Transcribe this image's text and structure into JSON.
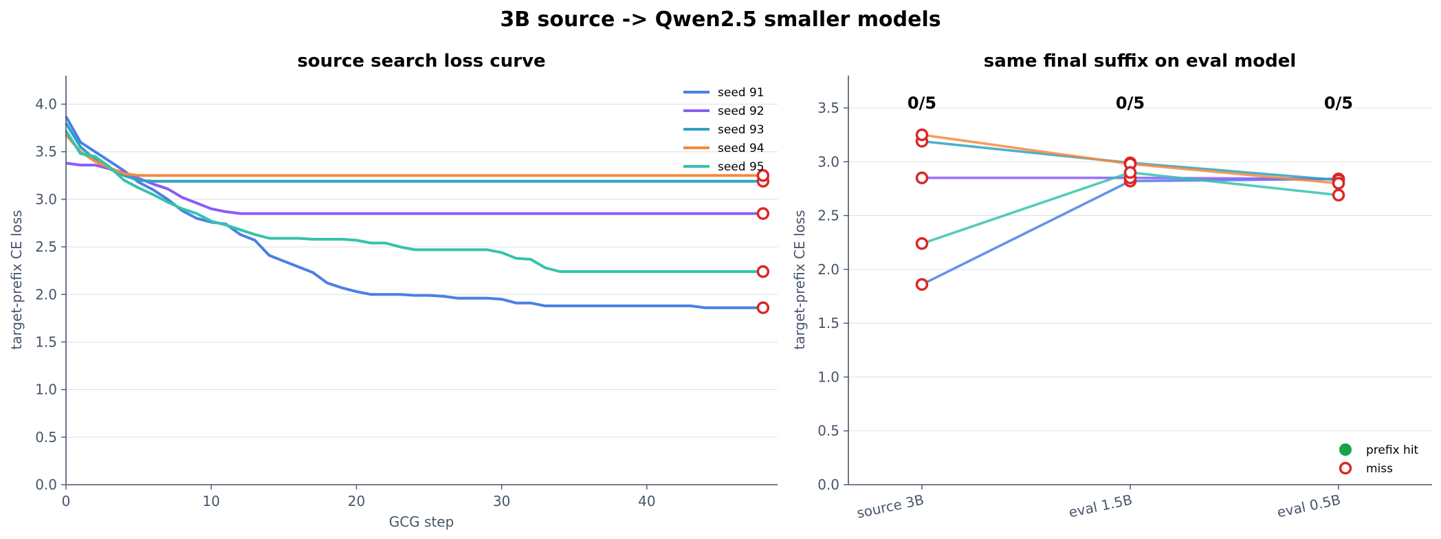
{
  "figure": {
    "title": "3B source -> Qwen2.5 smaller models"
  },
  "colors": {
    "seed 91": "#4a7fe6",
    "seed 92": "#8b5cf6",
    "seed 93": "#2ea2c3",
    "seed 94": "#f48a3c",
    "seed 95": "#36c2ad",
    "hit": "#16a34a",
    "miss": "#dc2626",
    "grid": "#dcdfe4",
    "axis": "#475569"
  },
  "chart_data": [
    {
      "type": "line",
      "title": "source search loss curve",
      "xlabel": "GCG step",
      "ylabel": "target-prefix CE loss",
      "xlim": [
        0,
        49
      ],
      "ylim": [
        0,
        4.3
      ],
      "xticks": [
        "0",
        "10",
        "20",
        "30",
        "40"
      ],
      "yticks": [
        "0.0",
        "0.5",
        "1.0",
        "1.5",
        "2.0",
        "2.5",
        "3.0",
        "3.5",
        "4.0"
      ],
      "grid": "horizontal",
      "legend": "top-right",
      "x": [
        0,
        1,
        2,
        3,
        4,
        5,
        6,
        7,
        8,
        9,
        10,
        11,
        12,
        13,
        14,
        15,
        16,
        17,
        18,
        19,
        20,
        21,
        22,
        23,
        24,
        25,
        26,
        27,
        28,
        29,
        30,
        31,
        32,
        33,
        34,
        35,
        36,
        37,
        38,
        39,
        40,
        41,
        42,
        43,
        44,
        45,
        46,
        47,
        48
      ],
      "series": [
        {
          "name": "seed 91",
          "values": [
            3.87,
            3.6,
            3.5,
            3.4,
            3.3,
            3.18,
            3.1,
            3.0,
            2.88,
            2.8,
            2.76,
            2.74,
            2.63,
            2.57,
            2.41,
            2.35,
            2.29,
            2.23,
            2.12,
            2.07,
            2.03,
            2.0,
            2.0,
            2.0,
            1.99,
            1.99,
            1.98,
            1.96,
            1.96,
            1.96,
            1.95,
            1.91,
            1.91,
            1.88,
            1.88,
            1.88,
            1.88,
            1.88,
            1.88,
            1.88,
            1.88,
            1.88,
            1.88,
            1.88,
            1.86,
            1.86,
            1.86,
            1.86,
            1.86
          ]
        },
        {
          "name": "seed 92",
          "values": [
            3.38,
            3.36,
            3.36,
            3.32,
            3.28,
            3.22,
            3.16,
            3.11,
            3.02,
            2.96,
            2.9,
            2.87,
            2.85,
            2.85,
            2.85,
            2.85,
            2.85,
            2.85,
            2.85,
            2.85,
            2.85,
            2.85,
            2.85,
            2.85,
            2.85,
            2.85,
            2.85,
            2.85,
            2.85,
            2.85,
            2.85,
            2.85,
            2.85,
            2.85,
            2.85,
            2.85,
            2.85,
            2.85,
            2.85,
            2.85,
            2.85,
            2.85,
            2.85,
            2.85,
            2.85,
            2.85,
            2.85,
            2.85,
            2.85
          ]
        },
        {
          "name": "seed 93",
          "values": [
            3.8,
            3.55,
            3.42,
            3.32,
            3.25,
            3.2,
            3.19,
            3.19,
            3.19,
            3.19,
            3.19,
            3.19,
            3.19,
            3.19,
            3.19,
            3.19,
            3.19,
            3.19,
            3.19,
            3.19,
            3.19,
            3.19,
            3.19,
            3.19,
            3.19,
            3.19,
            3.19,
            3.19,
            3.19,
            3.19,
            3.19,
            3.19,
            3.19,
            3.19,
            3.19,
            3.19,
            3.19,
            3.19,
            3.19,
            3.19,
            3.19,
            3.19,
            3.19,
            3.19,
            3.19,
            3.19,
            3.19,
            3.19,
            3.19
          ]
        },
        {
          "name": "seed 94",
          "values": [
            3.68,
            3.5,
            3.4,
            3.33,
            3.27,
            3.25,
            3.25,
            3.25,
            3.25,
            3.25,
            3.25,
            3.25,
            3.25,
            3.25,
            3.25,
            3.25,
            3.25,
            3.25,
            3.25,
            3.25,
            3.25,
            3.25,
            3.25,
            3.25,
            3.25,
            3.25,
            3.25,
            3.25,
            3.25,
            3.25,
            3.25,
            3.25,
            3.25,
            3.25,
            3.25,
            3.25,
            3.25,
            3.25,
            3.25,
            3.25,
            3.25,
            3.25,
            3.25,
            3.25,
            3.25,
            3.25,
            3.25,
            3.25,
            3.25
          ]
        },
        {
          "name": "seed 95",
          "values": [
            3.72,
            3.48,
            3.45,
            3.34,
            3.2,
            3.12,
            3.05,
            2.97,
            2.9,
            2.85,
            2.77,
            2.73,
            2.68,
            2.63,
            2.59,
            2.59,
            2.59,
            2.58,
            2.58,
            2.58,
            2.57,
            2.54,
            2.54,
            2.5,
            2.47,
            2.47,
            2.47,
            2.47,
            2.47,
            2.47,
            2.44,
            2.38,
            2.37,
            2.28,
            2.24,
            2.24,
            2.24,
            2.24,
            2.24,
            2.24,
            2.24,
            2.24,
            2.24,
            2.24,
            2.24,
            2.24,
            2.24,
            2.24,
            2.24
          ]
        }
      ],
      "final_markers": [
        {
          "series": "seed 91",
          "x": 48,
          "y": 1.86,
          "outcome": "miss"
        },
        {
          "series": "seed 92",
          "x": 48,
          "y": 2.85,
          "outcome": "miss"
        },
        {
          "series": "seed 93",
          "x": 48,
          "y": 3.19,
          "outcome": "miss"
        },
        {
          "series": "seed 94",
          "x": 48,
          "y": 3.25,
          "outcome": "miss"
        },
        {
          "series": "seed 95",
          "x": 48,
          "y": 2.24,
          "outcome": "miss"
        }
      ]
    },
    {
      "type": "line",
      "title": "same final suffix on eval model",
      "xlabel": "",
      "ylabel": "target-prefix CE loss",
      "ylim": [
        0,
        3.8
      ],
      "categories": [
        "source 3B",
        "eval 1.5B",
        "eval 0.5B"
      ],
      "yticks": [
        "0.0",
        "0.5",
        "1.0",
        "1.5",
        "2.0",
        "2.5",
        "3.0",
        "3.5"
      ],
      "grid": "horizontal",
      "legend": "bottom-right",
      "legend_entries": [
        "prefix hit",
        "miss"
      ],
      "annotations": [
        "0/5",
        "0/5",
        "0/5"
      ],
      "series": [
        {
          "name": "seed 91",
          "values": [
            1.86,
            2.82,
            2.84
          ],
          "outcome": [
            "miss",
            "miss",
            "miss"
          ]
        },
        {
          "name": "seed 92",
          "values": [
            2.85,
            2.85,
            2.84
          ],
          "outcome": [
            "miss",
            "miss",
            "miss"
          ]
        },
        {
          "name": "seed 93",
          "values": [
            3.19,
            2.99,
            2.83
          ],
          "outcome": [
            "miss",
            "miss",
            "miss"
          ]
        },
        {
          "name": "seed 94",
          "values": [
            3.25,
            2.98,
            2.8
          ],
          "outcome": [
            "miss",
            "miss",
            "miss"
          ]
        },
        {
          "name": "seed 95",
          "values": [
            2.24,
            2.9,
            2.69
          ],
          "outcome": [
            "miss",
            "miss",
            "miss"
          ]
        }
      ]
    }
  ]
}
